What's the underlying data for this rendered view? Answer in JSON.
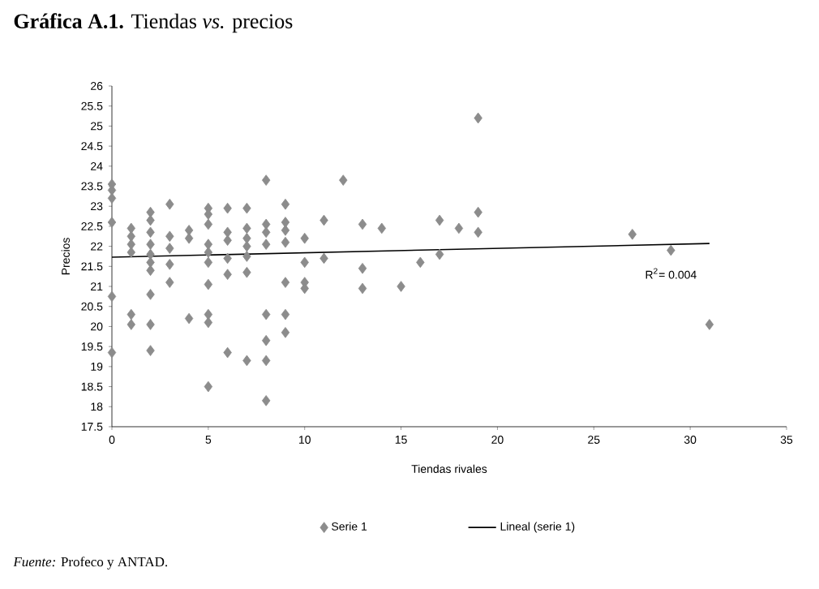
{
  "chart_data": {
    "type": "scatter",
    "title": "**Gráfica A.1.** Tiendas *vs.* precios",
    "xlabel": "Tiendas rivales",
    "ylabel": "Precios",
    "xlim": [
      0,
      35
    ],
    "xticks": [
      0,
      5,
      10,
      15,
      20,
      25,
      30,
      35
    ],
    "ylim": [
      17.5,
      26
    ],
    "yticks": [
      17.5,
      18,
      18.5,
      19,
      19.5,
      20,
      20.5,
      21,
      21.5,
      22,
      22.5,
      23,
      23.5,
      24,
      24.5,
      25,
      25.5,
      26
    ],
    "marker": "diamond",
    "legend": "bottom",
    "grid": false,
    "series": [
      {
        "name": "Serie 1",
        "color": "#8c8c8c",
        "x": [
          0,
          0,
          0,
          0,
          0,
          0,
          1,
          1,
          1,
          1,
          1,
          1,
          2,
          2,
          2,
          2,
          2,
          2,
          2,
          2,
          2,
          2,
          3,
          3,
          3,
          3,
          3,
          4,
          4,
          4,
          5,
          5,
          5,
          5,
          5,
          5,
          5,
          5,
          5,
          5,
          6,
          6,
          6,
          6,
          6,
          6,
          7,
          7,
          7,
          7,
          7,
          7,
          7,
          8,
          8,
          8,
          8,
          8,
          8,
          8,
          8,
          9,
          9,
          9,
          9,
          9,
          9,
          9,
          10,
          10,
          10,
          10,
          11,
          11,
          12,
          13,
          13,
          13,
          14,
          15,
          16,
          17,
          17,
          18,
          19,
          19,
          19,
          27,
          29,
          31
        ],
        "values": [
          23.55,
          23.4,
          23.2,
          22.6,
          20.75,
          19.35,
          22.45,
          22.25,
          22.05,
          21.85,
          20.3,
          20.05,
          22.85,
          22.65,
          22.35,
          22.05,
          21.8,
          21.6,
          21.4,
          20.8,
          20.05,
          19.4,
          23.05,
          22.25,
          21.95,
          21.55,
          21.1,
          22.4,
          22.2,
          20.2,
          22.95,
          22.8,
          22.55,
          22.05,
          21.85,
          21.6,
          21.05,
          20.3,
          20.1,
          18.5,
          22.95,
          22.35,
          22.15,
          21.7,
          21.3,
          19.35,
          22.95,
          22.45,
          22.2,
          22.0,
          21.75,
          21.35,
          19.15,
          23.65,
          22.55,
          22.35,
          22.05,
          20.3,
          19.65,
          19.15,
          18.15,
          23.05,
          22.6,
          22.4,
          22.1,
          21.1,
          20.3,
          19.85,
          22.2,
          21.6,
          21.1,
          20.95,
          22.65,
          21.7,
          23.65,
          22.55,
          21.45,
          20.95,
          22.45,
          21.0,
          21.6,
          22.65,
          21.8,
          22.45,
          25.2,
          22.85,
          22.35,
          22.3,
          21.9,
          20.05
        ]
      },
      {
        "name": "Lineal (serie 1)",
        "color": "#000000",
        "type": "line",
        "marker": "none",
        "x": [
          0,
          31
        ],
        "values": [
          21.73,
          22.07
        ]
      }
    ],
    "annotations": [
      {
        "text": "R$^{2}$= 0.004",
        "x": 29,
        "y": 21.6
      },
      "*Fuente:* Profeco y ANTAD."
    ]
  }
}
